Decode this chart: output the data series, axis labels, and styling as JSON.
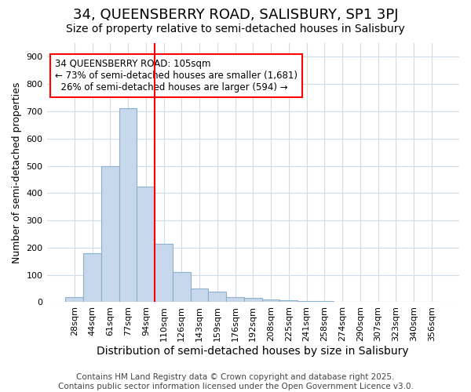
{
  "title1": "34, QUEENSBERRY ROAD, SALISBURY, SP1 3PJ",
  "title2": "Size of property relative to semi-detached houses in Salisbury",
  "xlabel": "Distribution of semi-detached houses by size in Salisbury",
  "ylabel": "Number of semi-detached properties",
  "categories": [
    "28sqm",
    "44sqm",
    "61sqm",
    "77sqm",
    "94sqm",
    "110sqm",
    "126sqm",
    "143sqm",
    "159sqm",
    "176sqm",
    "192sqm",
    "208sqm",
    "225sqm",
    "241sqm",
    "258sqm",
    "274sqm",
    "290sqm",
    "307sqm",
    "323sqm",
    "340sqm",
    "356sqm"
  ],
  "values": [
    20,
    180,
    500,
    710,
    425,
    215,
    110,
    50,
    40,
    20,
    15,
    10,
    8,
    5,
    3,
    2,
    1,
    0,
    0,
    0,
    0
  ],
  "bar_color": "#c8d8ec",
  "bar_edge_color": "#8ab0cc",
  "vline_color": "red",
  "vline_position": 4.5,
  "annotation_text": "34 QUEENSBERRY ROAD: 105sqm\n← 73% of semi-detached houses are smaller (1,681)\n  26% of semi-detached houses are larger (594) →",
  "annotation_box_color": "white",
  "annotation_box_edge": "red",
  "ylim": [
    0,
    950
  ],
  "yticks": [
    0,
    100,
    200,
    300,
    400,
    500,
    600,
    700,
    800,
    900
  ],
  "background_color": "#ffffff",
  "grid_color": "#d0dce8",
  "footer_text": "Contains HM Land Registry data © Crown copyright and database right 2025.\nContains public sector information licensed under the Open Government Licence v3.0.",
  "title_fontsize": 13,
  "subtitle_fontsize": 10,
  "xlabel_fontsize": 10,
  "ylabel_fontsize": 9,
  "tick_fontsize": 8,
  "footer_fontsize": 7.5,
  "ann_fontsize": 8.5
}
